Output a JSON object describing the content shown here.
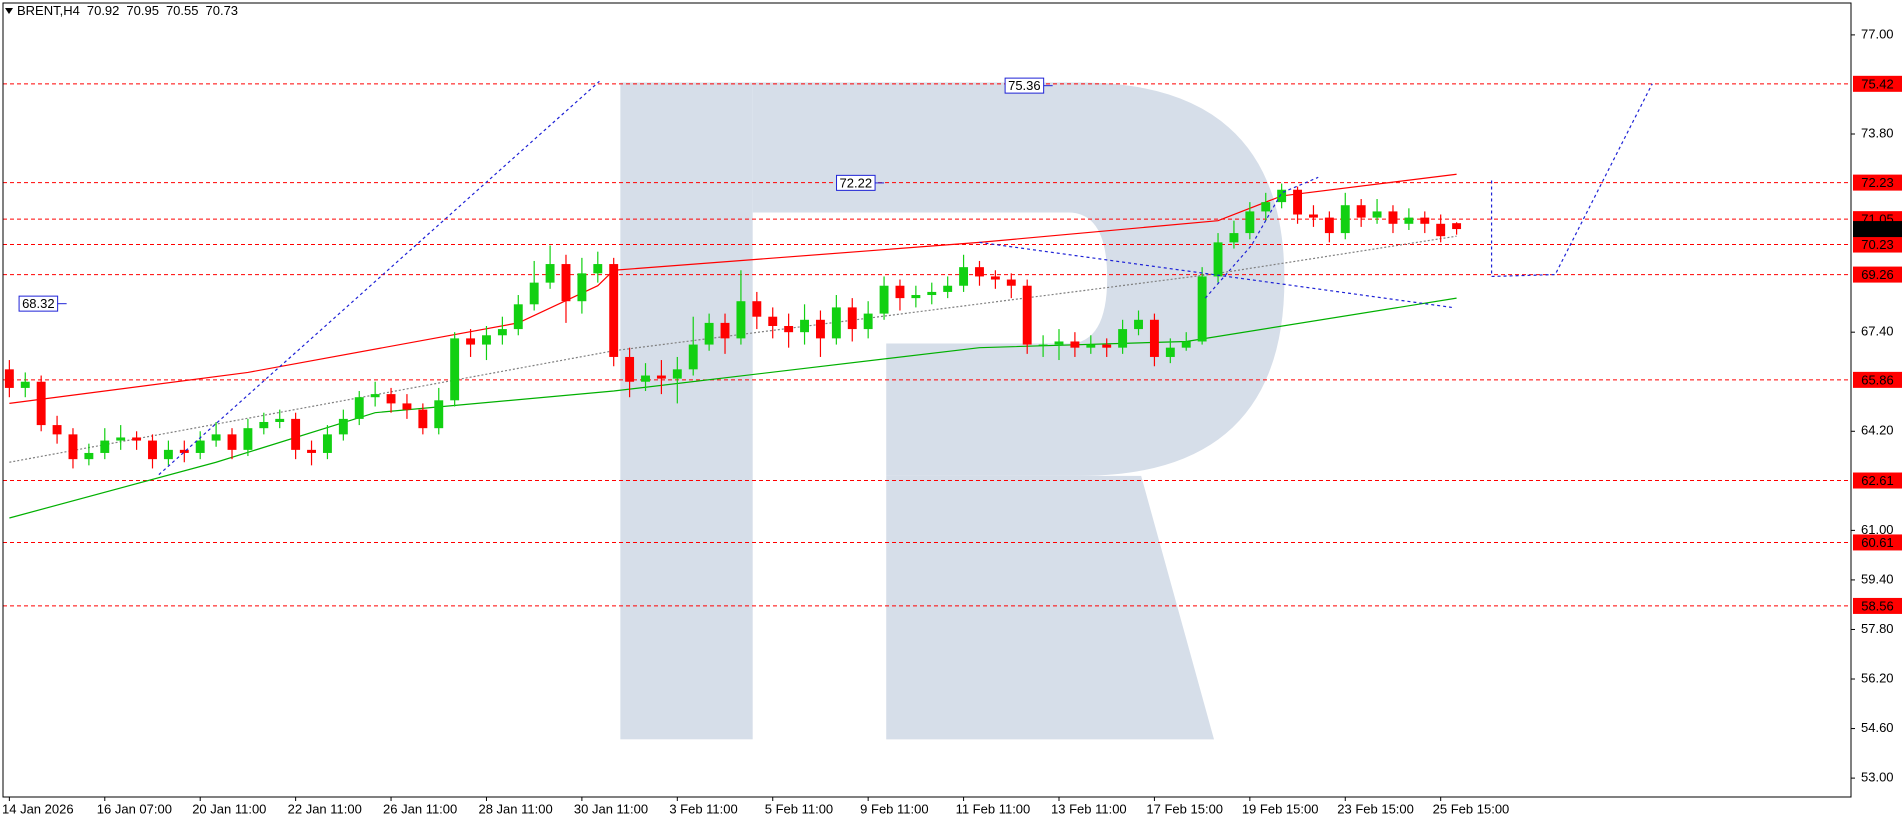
{
  "chart_data": {
    "type": "candlestick",
    "symbol": "BRENT,H4",
    "categories": [
      "14 Jan 2026",
      null,
      null,
      null,
      null,
      null,
      "16 Jan 07:00",
      null,
      null,
      null,
      null,
      null,
      "20 Jan 11:00",
      null,
      null,
      null,
      null,
      null,
      "22 Jan 11:00",
      null,
      null,
      null,
      null,
      null,
      "26 Jan 11:00",
      null,
      null,
      null,
      null,
      null,
      "28 Jan 11:00",
      null,
      null,
      null,
      null,
      null,
      "30 Jan 11:00",
      null,
      null,
      null,
      null,
      null,
      "3 Feb 11:00",
      null,
      null,
      null,
      null,
      null,
      "5 Feb 11:00",
      null,
      null,
      null,
      null,
      null,
      "9 Feb 11:00",
      null,
      null,
      null,
      null,
      null,
      "11 Feb 11:00",
      null,
      null,
      null,
      null,
      null,
      "13 Feb 11:00",
      null,
      null,
      null,
      null,
      null,
      "17 Feb 15:00",
      null,
      null,
      null,
      null,
      null,
      "19 Feb 15:00",
      null,
      null,
      null,
      null,
      null,
      "23 Feb 15:00",
      null,
      null,
      null,
      null,
      null,
      "25 Feb 15:00",
      null
    ],
    "open": [
      66.2,
      65.6,
      65.8,
      64.4,
      64.1,
      63.3,
      63.5,
      63.9,
      64.0,
      63.9,
      63.3,
      63.6,
      63.5,
      63.9,
      64.1,
      63.6,
      64.3,
      64.5,
      64.6,
      63.6,
      63.5,
      64.1,
      64.6,
      65.3,
      65.4,
      65.1,
      64.9,
      64.3,
      65.2,
      67.2,
      67.0,
      67.3,
      67.5,
      68.3,
      69.0,
      69.6,
      68.4,
      69.3,
      69.6,
      66.6,
      65.8,
      66.0,
      65.9,
      66.2,
      67.0,
      67.7,
      67.2,
      68.4,
      67.9,
      67.6,
      67.4,
      67.8,
      67.2,
      68.2,
      67.5,
      68.0,
      68.9,
      68.5,
      68.6,
      68.7,
      68.9,
      69.5,
      69.2,
      69.1,
      68.9,
      67.0,
      67.0,
      67.1,
      66.9,
      67.0,
      66.9,
      67.5,
      67.8,
      66.6,
      66.9,
      67.1,
      69.2,
      70.3,
      70.6,
      71.3,
      71.6,
      72.0,
      71.2,
      71.1,
      70.6,
      71.5,
      71.1,
      71.3,
      70.9,
      71.1,
      70.9,
      70.92
    ],
    "high": [
      66.5,
      66.1,
      66.0,
      64.7,
      64.3,
      63.8,
      64.3,
      64.4,
      64.2,
      64.1,
      63.9,
      63.9,
      64.2,
      64.5,
      64.3,
      64.6,
      64.8,
      64.9,
      64.8,
      63.9,
      64.4,
      64.9,
      65.5,
      65.8,
      65.6,
      65.4,
      65.1,
      65.6,
      67.4,
      67.5,
      67.6,
      67.9,
      68.6,
      69.7,
      70.2,
      69.9,
      69.8,
      70.0,
      69.8,
      66.9,
      66.4,
      66.5,
      66.6,
      67.9,
      68.0,
      68.0,
      69.4,
      68.7,
      68.2,
      68.0,
      68.3,
      68.1,
      68.6,
      68.5,
      68.4,
      69.2,
      69.1,
      68.9,
      69.0,
      69.2,
      69.9,
      69.7,
      69.4,
      69.3,
      69.1,
      67.3,
      67.5,
      67.4,
      67.3,
      67.2,
      67.8,
      68.1,
      68.0,
      67.2,
      67.4,
      69.5,
      70.6,
      71.0,
      71.6,
      71.9,
      72.2,
      72.1,
      71.5,
      71.3,
      71.9,
      71.7,
      71.7,
      71.5,
      71.4,
      71.3,
      71.2,
      70.95
    ],
    "low": [
      65.3,
      65.3,
      64.2,
      63.8,
      63.0,
      63.1,
      63.3,
      63.6,
      63.6,
      63.0,
      63.1,
      63.2,
      63.3,
      63.7,
      63.3,
      63.4,
      64.1,
      64.3,
      63.3,
      63.1,
      63.3,
      63.9,
      64.4,
      65.0,
      64.8,
      64.6,
      64.1,
      64.1,
      65.0,
      66.6,
      66.5,
      67.0,
      67.3,
      68.1,
      68.8,
      67.7,
      68.0,
      69.0,
      66.3,
      65.3,
      65.5,
      65.4,
      65.1,
      66.0,
      66.8,
      66.7,
      67.0,
      67.5,
      67.2,
      66.9,
      67.0,
      66.6,
      67.0,
      67.1,
      67.2,
      67.8,
      68.1,
      68.2,
      68.3,
      68.5,
      68.7,
      68.9,
      68.8,
      68.5,
      66.7,
      66.6,
      66.5,
      66.6,
      66.7,
      66.6,
      66.7,
      67.3,
      66.3,
      66.4,
      66.8,
      67.0,
      69.0,
      70.1,
      70.4,
      71.0,
      71.4,
      70.9,
      70.8,
      70.3,
      70.4,
      70.8,
      70.9,
      70.6,
      70.7,
      70.6,
      70.3,
      70.55
    ],
    "close": [
      65.6,
      65.8,
      64.4,
      64.1,
      63.3,
      63.5,
      63.9,
      64.0,
      63.9,
      63.3,
      63.6,
      63.5,
      63.9,
      64.1,
      63.6,
      64.3,
      64.5,
      64.6,
      63.6,
      63.5,
      64.1,
      64.6,
      65.3,
      65.4,
      65.1,
      64.9,
      64.3,
      65.2,
      67.2,
      67.0,
      67.3,
      67.5,
      68.3,
      69.0,
      69.6,
      68.4,
      69.3,
      69.6,
      66.6,
      65.8,
      66.0,
      65.9,
      66.2,
      67.0,
      67.7,
      67.2,
      68.4,
      67.9,
      67.6,
      67.4,
      67.8,
      67.2,
      68.2,
      67.5,
      68.0,
      68.9,
      68.5,
      68.6,
      68.7,
      68.9,
      69.5,
      69.2,
      69.1,
      68.9,
      67.0,
      67.0,
      67.1,
      66.9,
      67.0,
      66.9,
      67.5,
      67.8,
      66.6,
      66.9,
      67.1,
      69.2,
      70.3,
      70.6,
      71.3,
      71.6,
      72.0,
      71.2,
      71.1,
      70.6,
      71.5,
      71.1,
      71.3,
      70.9,
      71.1,
      70.9,
      70.5,
      70.73
    ],
    "up_color": "#12d012",
    "down_color": "#ff0000",
    "xlim": [
      -0.4,
      115.8
    ],
    "ylim": [
      52.39,
      78.03
    ],
    "yticks": [
      {
        "value": 77,
        "label": "77.00"
      },
      {
        "value": 73.8,
        "label": "73.80"
      },
      {
        "value": 67.4,
        "label": "67.40"
      },
      {
        "value": 64.2,
        "label": "64.20"
      },
      {
        "value": 61,
        "label": "61.00"
      },
      {
        "value": 59.4,
        "label": "59.40"
      },
      {
        "value": 57.8,
        "label": "57.80"
      },
      {
        "value": 56.2,
        "label": "56.20"
      },
      {
        "value": 54.6,
        "label": "54.60"
      },
      {
        "value": 53,
        "label": "53.00"
      }
    ],
    "levels": [
      75.42,
      72.23,
      71.05,
      70.23,
      69.26,
      65.86,
      62.61,
      60.61,
      58.56
    ],
    "level_color": "#ff0000",
    "indicators": [
      {
        "x": [
          0,
          15,
          32,
          37,
          38,
          61,
          76,
          80,
          91
        ],
        "values": [
          65.1,
          66.1,
          67.7,
          68.9,
          69.4,
          70.3,
          71.0,
          71.8,
          72.5
        ],
        "color": "#ff0000",
        "style": "solid"
      },
      {
        "x": [
          0,
          38,
          76,
          91
        ],
        "values": [
          63.2,
          66.8,
          69.3,
          70.5
        ],
        "color": "#808080",
        "style": "dotted"
      },
      {
        "x": [
          0,
          13,
          23,
          38,
          61,
          74,
          91
        ],
        "values": [
          61.4,
          63.2,
          64.8,
          65.5,
          66.9,
          67.1,
          68.5
        ],
        "color": "#00b000",
        "style": "solid"
      }
    ],
    "forecast": [
      {
        "x": [
          9.4,
          37.1
        ],
        "values": [
          62.8,
          75.5
        ]
      },
      {
        "x": [
          61,
          90.7
        ],
        "values": [
          70.3,
          68.2
        ]
      },
      {
        "x": [
          75.2,
          78.1,
          80,
          82.3
        ],
        "values": [
          68.5,
          70.2,
          71.9,
          72.4
        ]
      },
      {
        "x": [
          93.2,
          93.2,
          97.2,
          103.3
        ],
        "values": [
          72.3,
          69.2,
          69.26,
          75.42
        ]
      }
    ],
    "forecast_color": "#1e22d6",
    "annotations": [
      68.32,
      72.22,
      75.36
    ]
  }
}
